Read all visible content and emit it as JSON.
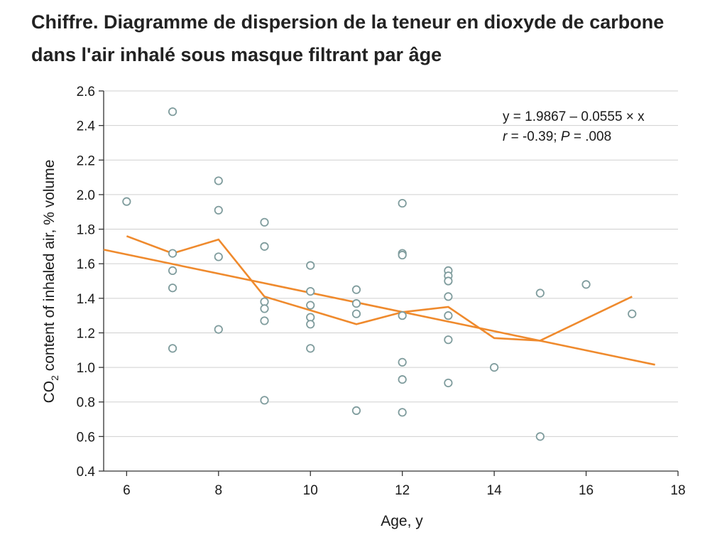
{
  "title": "Chiffre. Diagramme de dispersion de la teneur en dioxyde de carbone dans l'air inhalé sous masque filtrant par âge",
  "chart_data": {
    "type": "scatter",
    "title": "Chiffre. Diagramme de dispersion de la teneur en dioxyde de carbone dans l'air inhalé sous masque filtrant par âge",
    "xlabel": "Age, y",
    "ylabel_parts": [
      "CO",
      "2",
      " content of inhaled air, % volume"
    ],
    "xlim": [
      5.5,
      18
    ],
    "ylim": [
      0.4,
      2.6
    ],
    "xticks": [
      6,
      8,
      10,
      12,
      14,
      16,
      18
    ],
    "yticks": [
      0.4,
      0.6,
      0.8,
      1.0,
      1.2,
      1.4,
      1.6,
      1.8,
      2.0,
      2.2,
      2.4,
      2.6
    ],
    "ytick_labels": [
      "0.4",
      "0.6",
      "0.8",
      "1.0",
      "1.2",
      "1.4",
      "1.6",
      "1.8",
      "2.0",
      "2.2",
      "2.4",
      "2.6"
    ],
    "grid": "horizontal",
    "points": [
      {
        "x": 6,
        "y": 1.96
      },
      {
        "x": 7,
        "y": 2.48
      },
      {
        "x": 7,
        "y": 1.66
      },
      {
        "x": 7,
        "y": 1.56
      },
      {
        "x": 7,
        "y": 1.46
      },
      {
        "x": 7,
        "y": 1.11
      },
      {
        "x": 8,
        "y": 2.08
      },
      {
        "x": 8,
        "y": 1.91
      },
      {
        "x": 8,
        "y": 1.64
      },
      {
        "x": 8,
        "y": 1.22
      },
      {
        "x": 9,
        "y": 1.84
      },
      {
        "x": 9,
        "y": 1.7
      },
      {
        "x": 9,
        "y": 1.38
      },
      {
        "x": 9,
        "y": 1.34
      },
      {
        "x": 9,
        "y": 1.27
      },
      {
        "x": 9,
        "y": 0.81
      },
      {
        "x": 10,
        "y": 1.59
      },
      {
        "x": 10,
        "y": 1.44
      },
      {
        "x": 10,
        "y": 1.36
      },
      {
        "x": 10,
        "y": 1.29
      },
      {
        "x": 10,
        "y": 1.25
      },
      {
        "x": 10,
        "y": 1.11
      },
      {
        "x": 11,
        "y": 1.45
      },
      {
        "x": 11,
        "y": 1.37
      },
      {
        "x": 11,
        "y": 1.31
      },
      {
        "x": 11,
        "y": 0.75
      },
      {
        "x": 12,
        "y": 1.95
      },
      {
        "x": 12,
        "y": 1.66
      },
      {
        "x": 12,
        "y": 1.65
      },
      {
        "x": 12,
        "y": 1.3
      },
      {
        "x": 12,
        "y": 1.03
      },
      {
        "x": 12,
        "y": 0.93
      },
      {
        "x": 12,
        "y": 0.74
      },
      {
        "x": 13,
        "y": 1.56
      },
      {
        "x": 13,
        "y": 1.53
      },
      {
        "x": 13,
        "y": 1.5
      },
      {
        "x": 13,
        "y": 1.41
      },
      {
        "x": 13,
        "y": 1.3
      },
      {
        "x": 13,
        "y": 1.16
      },
      {
        "x": 13,
        "y": 0.91
      },
      {
        "x": 14,
        "y": 1.0
      },
      {
        "x": 15,
        "y": 1.43
      },
      {
        "x": 15,
        "y": 0.6
      },
      {
        "x": 16,
        "y": 1.48
      },
      {
        "x": 17,
        "y": 1.31
      }
    ],
    "regression": {
      "intercept": 1.9867,
      "slope": -0.0555,
      "x_range": [
        5.5,
        17.5
      ],
      "equation_label": "y = 1.9867 – 0.0555 × x",
      "stats_parts": [
        "r",
        " = -0.39; ",
        "P",
        " = .008"
      ]
    },
    "mean_line": [
      {
        "x": 6,
        "y": 1.76
      },
      {
        "x": 7,
        "y": 1.66
      },
      {
        "x": 8,
        "y": 1.74
      },
      {
        "x": 9,
        "y": 1.41
      },
      {
        "x": 10,
        "y": 1.33
      },
      {
        "x": 11,
        "y": 1.25
      },
      {
        "x": 12,
        "y": 1.32
      },
      {
        "x": 13,
        "y": 1.35
      },
      {
        "x": 14,
        "y": 1.17
      },
      {
        "x": 15,
        "y": 1.155
      },
      {
        "x": 17,
        "y": 1.41
      }
    ],
    "colors": {
      "points": "#7f9c9d",
      "lines": "#ef8a2d",
      "grid": "#cfcfcf",
      "axis": "#333333"
    }
  }
}
